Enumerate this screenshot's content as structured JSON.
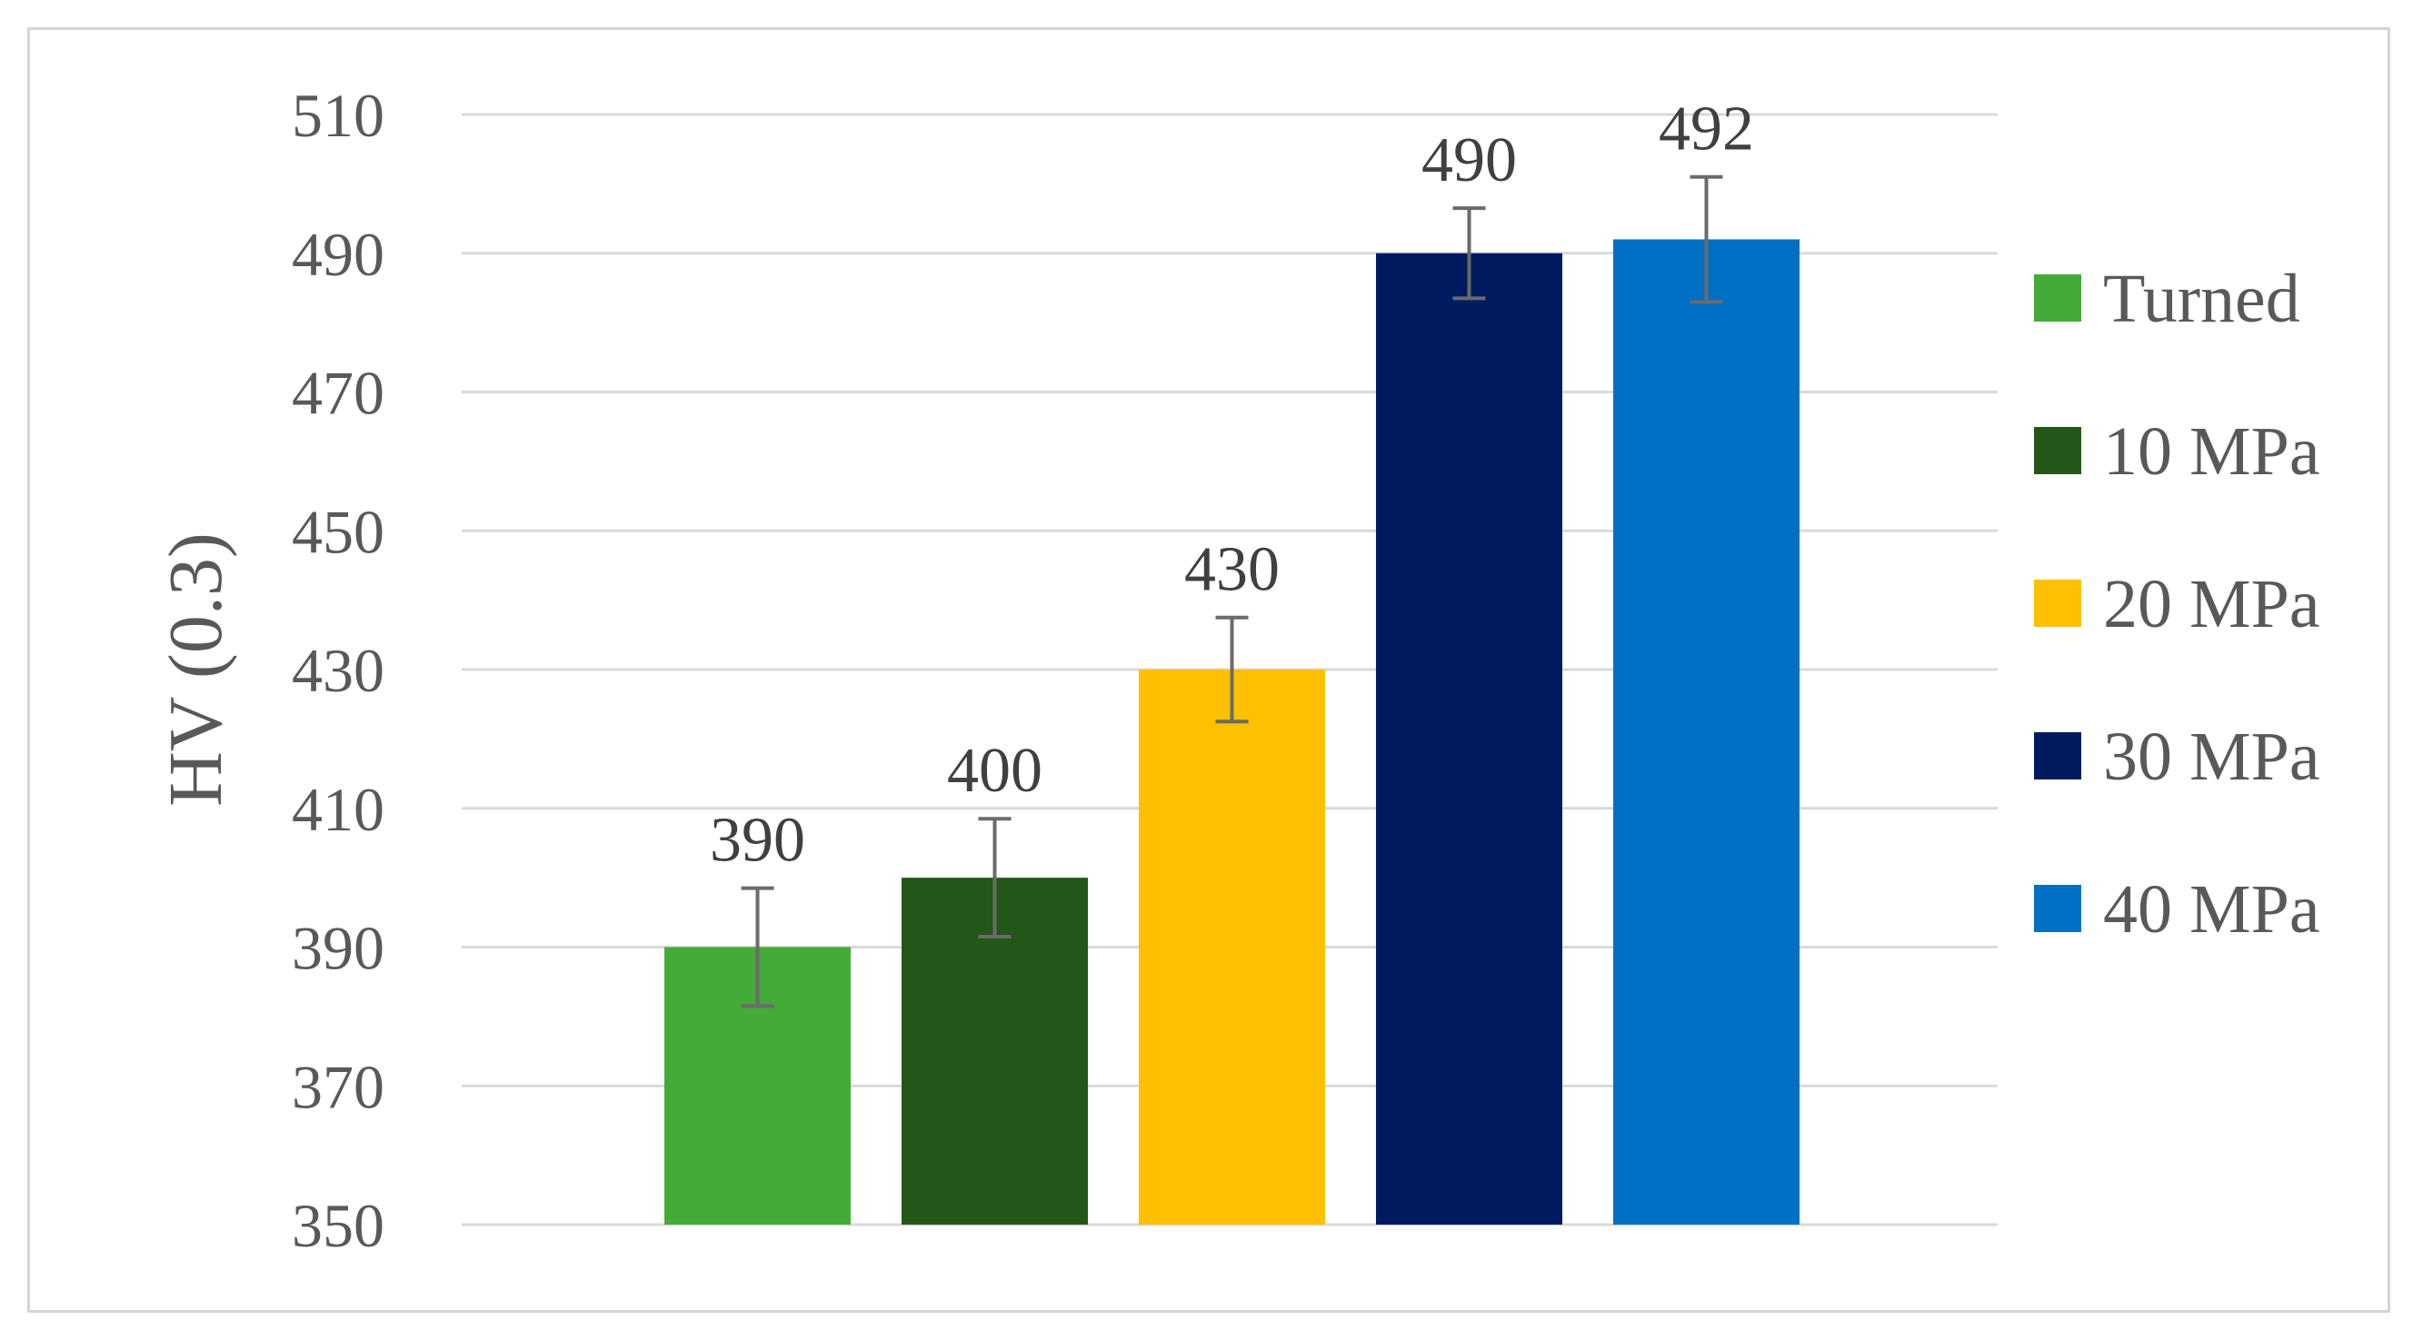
{
  "chart_data": {
    "type": "bar",
    "title": "",
    "xlabel": "",
    "ylabel": "HV (0.3)",
    "ylim": [
      350,
      510
    ],
    "yticks": [
      350,
      370,
      390,
      410,
      430,
      450,
      470,
      490,
      510
    ],
    "grid": true,
    "legend_position": "right",
    "series": [
      {
        "name": "Turned",
        "value": 390,
        "label": "390",
        "error": 8.5,
        "color": "#43ab38"
      },
      {
        "name": "10 MPa",
        "value": 400,
        "label": "400",
        "error": 8.5,
        "color": "#225718"
      },
      {
        "name": "20 MPa",
        "value": 430,
        "label": "430",
        "error": 7.5,
        "color": "#ffc000"
      },
      {
        "name": "30 MPa",
        "value": 490,
        "label": "490",
        "error": 6.5,
        "color": "#001a60"
      },
      {
        "name": "40 MPa",
        "value": 492,
        "label": "492",
        "error": 9.0,
        "color": "#0070c4"
      }
    ]
  }
}
